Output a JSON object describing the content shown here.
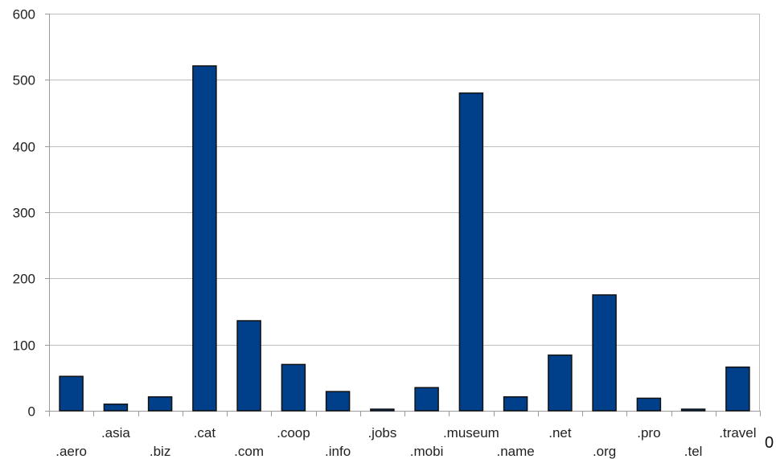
{
  "chart_data": {
    "type": "bar",
    "title": "",
    "xlabel": "",
    "ylabel": "",
    "ylim": [
      0,
      600
    ],
    "yticks": [
      0,
      100,
      200,
      300,
      400,
      500,
      600
    ],
    "grid": true,
    "categories": [
      ".aero",
      ".asia",
      ".biz",
      ".cat",
      ".com",
      ".coop",
      ".info",
      ".jobs",
      ".mobi",
      ".museum",
      ".name",
      ".net",
      ".org",
      ".pro",
      ".tel",
      ".travel"
    ],
    "values": [
      52,
      10,
      21,
      521,
      136,
      70,
      29,
      2,
      35,
      480,
      21,
      84,
      175,
      19,
      2,
      66
    ],
    "colors": {
      "bar_fill": "#003f8a",
      "bar_stroke": "#111111",
      "grid": "#bdbdbd",
      "axis": "#9a9a9a"
    }
  },
  "corner_text": "0"
}
